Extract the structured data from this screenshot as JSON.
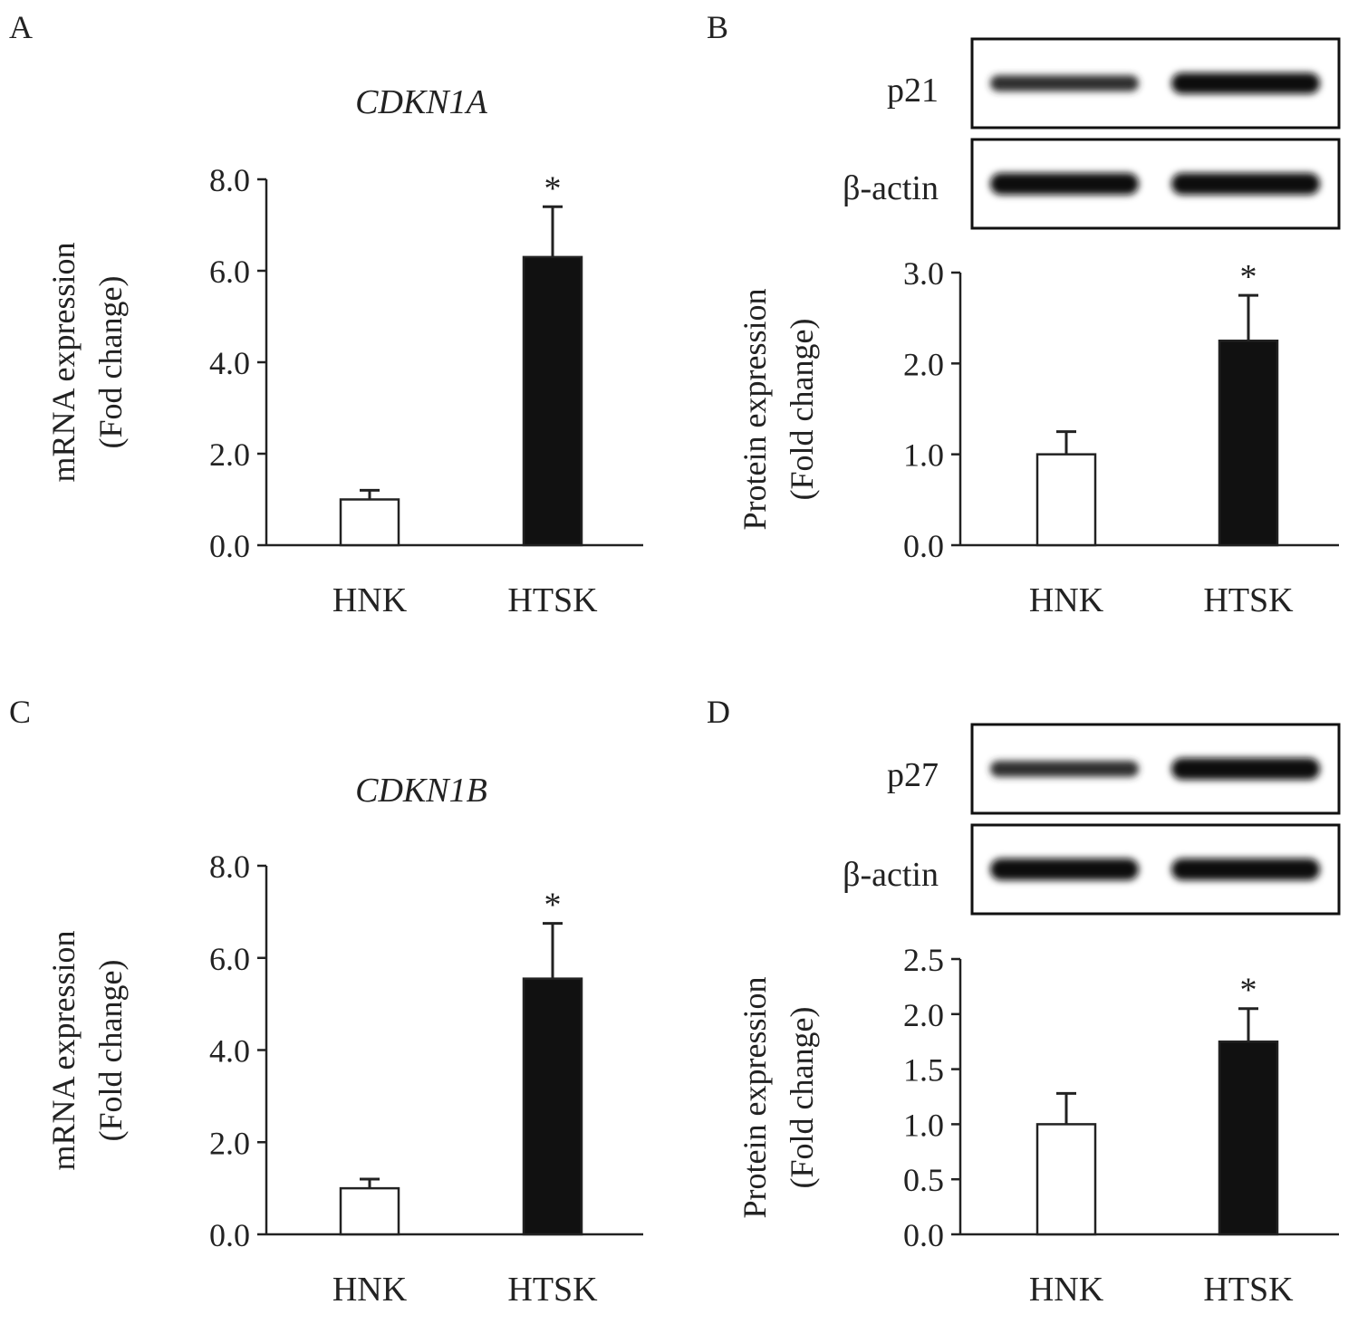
{
  "panels": [
    {
      "label": "A"
    },
    {
      "label": "B"
    },
    {
      "label": "C"
    },
    {
      "label": "D"
    }
  ],
  "blots": {
    "B": {
      "rows": [
        {
          "label": "p21",
          "bands": [
            0.55,
            0.95
          ]
        },
        {
          "label": "β-actin",
          "bands": [
            1.0,
            1.0
          ]
        }
      ]
    },
    "D": {
      "rows": [
        {
          "label": "p27",
          "bands": [
            0.55,
            1.0
          ]
        },
        {
          "label": "β-actin",
          "bands": [
            1.0,
            1.0
          ]
        }
      ]
    }
  },
  "colors": {
    "control_fill": "#ffffff",
    "treated_fill": "#111111",
    "axis": "#222222"
  },
  "chart_data": [
    {
      "type": "bar",
      "title": "CDKN1A",
      "categories": [
        "HNK",
        "HTSK"
      ],
      "values": [
        1.0,
        6.3
      ],
      "errors": [
        0.2,
        1.1
      ],
      "ylabel_line1": "mRNA expression",
      "ylabel_line2": "(Fod change)",
      "ylim": [
        0,
        8
      ],
      "yticks": [
        "0.0",
        "2.0",
        "4.0",
        "6.0",
        "8.0"
      ],
      "significance": [
        "",
        "*"
      ]
    },
    {
      "type": "bar",
      "title": "",
      "categories": [
        "HNK",
        "HTSK"
      ],
      "values": [
        1.0,
        2.25
      ],
      "errors": [
        0.25,
        0.5
      ],
      "ylabel_line1": "Protein expression",
      "ylabel_line2": "(Fold change)",
      "ylim": [
        0,
        3
      ],
      "yticks": [
        "0.0",
        "1.0",
        "2.0",
        "3.0"
      ],
      "significance": [
        "",
        "*"
      ]
    },
    {
      "type": "bar",
      "title": "CDKN1B",
      "categories": [
        "HNK",
        "HTSK"
      ],
      "values": [
        1.0,
        5.55
      ],
      "errors": [
        0.2,
        1.2
      ],
      "ylabel_line1": "mRNA expression",
      "ylabel_line2": "(Fold change)",
      "ylim": [
        0,
        8
      ],
      "yticks": [
        "0.0",
        "2.0",
        "4.0",
        "6.0",
        "8.0"
      ],
      "significance": [
        "",
        "*"
      ]
    },
    {
      "type": "bar",
      "title": "",
      "categories": [
        "HNK",
        "HTSK"
      ],
      "values": [
        1.0,
        1.75
      ],
      "errors": [
        0.28,
        0.3
      ],
      "ylabel_line1": "Protein expression",
      "ylabel_line2": "(Fold change)",
      "ylim": [
        0,
        2.5
      ],
      "yticks": [
        "0.0",
        "0.5",
        "1.0",
        "1.5",
        "2.0",
        "2.5"
      ],
      "significance": [
        "",
        "*"
      ]
    }
  ]
}
